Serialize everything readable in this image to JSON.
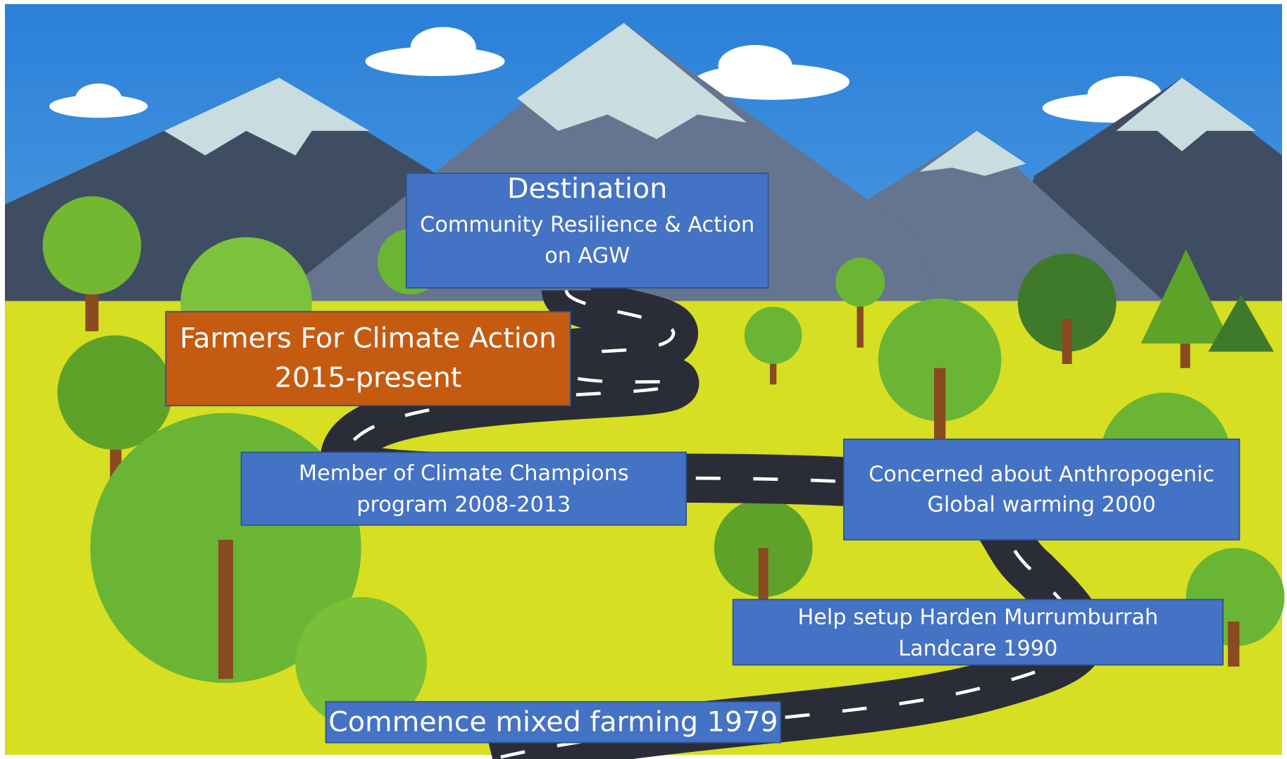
{
  "nodes": [
    {
      "lines": [
        "Destination",
        "Community Resilience & Action",
        "on AGW"
      ]
    },
    {
      "lines": [
        "Farmers For Climate Action",
        "2015-present"
      ]
    },
    {
      "lines": [
        "Member of Climate Champions",
        "program  2008-2013"
      ]
    },
    {
      "lines": [
        "Concerned about Anthropogenic",
        "Global warming 2000"
      ]
    },
    {
      "lines": [
        "Help setup Harden Murrumburrah",
        "Landcare 1990"
      ]
    },
    {
      "lines": [
        "Commence mixed farming 1979"
      ]
    }
  ]
}
